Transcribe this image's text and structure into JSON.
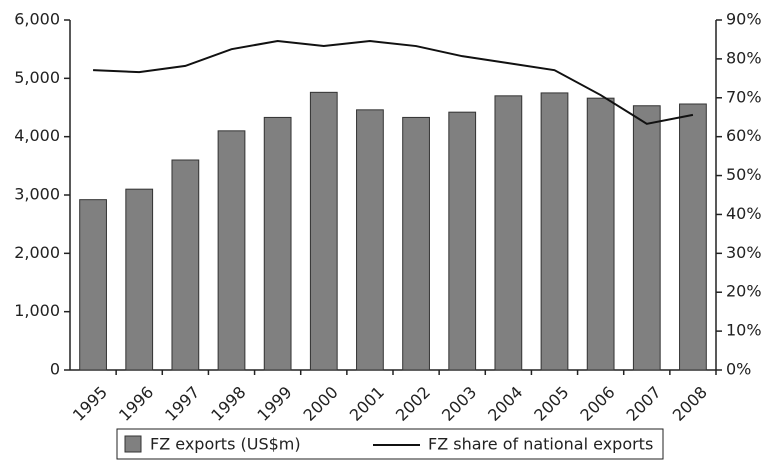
{
  "chart_data": {
    "type": "bar-line",
    "categories": [
      "1995",
      "1996",
      "1997",
      "1998",
      "1999",
      "2000",
      "2001",
      "2002",
      "2003",
      "2004",
      "2005",
      "2006",
      "2007",
      "2008"
    ],
    "series": [
      {
        "name": "FZ exports (US$m)",
        "color": "#808080",
        "type": "bar",
        "values": [
          2920,
          3100,
          3600,
          4100,
          4330,
          4760,
          4460,
          4330,
          4420,
          4700,
          4750,
          4660,
          4530,
          4560
        ]
      },
      {
        "name": "FZ share of national exports",
        "color": "#111111",
        "type": "line",
        "axis": "y2",
        "values": [
          77.1,
          76.6,
          78.2,
          82.5,
          84.6,
          83.3,
          84.6,
          83.3,
          80.7,
          78.9,
          77.1,
          70.7,
          63.3,
          65.6
        ]
      }
    ],
    "ylim": [
      0,
      6000
    ],
    "yticks": [
      0,
      {
        "value": 1000,
        "label": "1,000"
      },
      {
        "value": 2000,
        "label": "2,000"
      },
      {
        "value": 3000,
        "label": "3,000"
      },
      {
        "value": 4000,
        "label": "4,000"
      },
      {
        "value": 5000,
        "label": "5,000"
      },
      {
        "value": 6000,
        "label": "6,000"
      }
    ],
    "y2lim": [
      0,
      90
    ],
    "y2ticks": [
      {
        "value": 0,
        "label": "0%"
      },
      {
        "value": 10,
        "label": "10%"
      },
      {
        "value": 20,
        "label": "20%"
      },
      {
        "value": 30,
        "label": "30%"
      },
      {
        "value": 40,
        "label": "40%"
      },
      {
        "value": 50,
        "label": "50%"
      },
      {
        "value": 60,
        "label": "60%"
      },
      {
        "value": 70,
        "label": "70%"
      },
      {
        "value": 80,
        "label": "80%"
      },
      {
        "value": 90,
        "label": "90%"
      }
    ],
    "legend": "bottom"
  }
}
